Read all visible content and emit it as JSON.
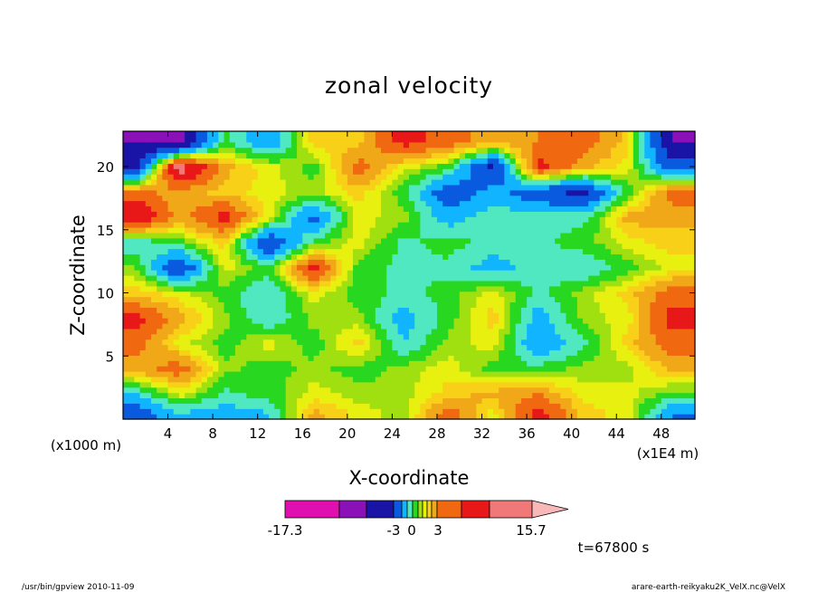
{
  "chart_data": {
    "type": "heatmap",
    "title": "zonal velocity",
    "xlabel": "X-coordinate",
    "ylabel": "Z-coordinate",
    "x_unit_label": "(x1E4 m)",
    "y_unit_label": "(x1000 m)",
    "xlim": [
      0,
      51
    ],
    "ylim": [
      0,
      22.8
    ],
    "x_ticks": [
      4,
      8,
      12,
      16,
      20,
      24,
      28,
      32,
      36,
      40,
      44,
      48
    ],
    "y_ticks": [
      5,
      10,
      15,
      20
    ],
    "time_label": "t=67800 s",
    "colorbar": {
      "tick_labels": [
        "-17.3",
        "-3",
        "0",
        "3",
        "15.7"
      ],
      "tick_values": [
        -17.3,
        -3,
        0,
        3,
        15.7
      ],
      "colors": [
        "#e010b0",
        "#8a10b8",
        "#1a14a6",
        "#0a5ae0",
        "#10b4ff",
        "#50e8c0",
        "#28d820",
        "#a0e010",
        "#e8f010",
        "#f8d018",
        "#f0a818",
        "#f06810",
        "#e81818",
        "#f07878",
        "#f8b8b8"
      ]
    },
    "field": {
      "rows_z": [
        22,
        20,
        18,
        16,
        14,
        12,
        10,
        8,
        6,
        4,
        2,
        0.5
      ],
      "cols_x": [
        1,
        5,
        9,
        13,
        17,
        21,
        25,
        29,
        33,
        37,
        41,
        45,
        49
      ],
      "values": [
        [
          -10,
          -12,
          0,
          -4,
          3,
          3,
          8,
          6,
          4,
          5,
          6,
          3,
          -10
        ],
        [
          -9,
          12,
          4,
          2,
          0,
          6,
          2,
          0,
          -8,
          8,
          4,
          2,
          -6
        ],
        [
          6,
          4,
          3,
          2,
          1,
          3,
          0,
          -6,
          -3,
          -6,
          -8,
          0,
          6
        ],
        [
          10,
          4,
          8,
          2,
          -5,
          2,
          1,
          -3,
          -1,
          -1,
          -1,
          4,
          4
        ],
        [
          -2,
          0,
          3,
          -7,
          0,
          2,
          -1,
          0,
          -1,
          -1,
          0,
          2,
          3
        ],
        [
          1,
          -7,
          2,
          0,
          8,
          0,
          -1,
          -1,
          -3,
          -1,
          -2,
          0,
          2
        ],
        [
          3,
          2,
          0,
          -2,
          2,
          0,
          -1,
          0,
          2,
          -1,
          1,
          3,
          6
        ],
        [
          8,
          4,
          1,
          -2,
          1,
          1,
          -3,
          0,
          3,
          -3,
          1,
          2,
          8
        ],
        [
          6,
          2,
          0,
          2,
          0,
          3,
          -2,
          1,
          2,
          -4,
          -1,
          3,
          6
        ],
        [
          4,
          6,
          1,
          0,
          1,
          0,
          1,
          2,
          0,
          0,
          1,
          1,
          4
        ],
        [
          -2,
          2,
          -1,
          0,
          2,
          1,
          1,
          3,
          4,
          5,
          2,
          2,
          0
        ],
        [
          -6,
          -2,
          -3,
          -2,
          4,
          2,
          1,
          6,
          2,
          8,
          3,
          2,
          -4
        ]
      ]
    }
  },
  "footer": {
    "left_text": "/usr/bin/gpview  2010-11-09",
    "right_text": "arare-earth-reikyaku2K_VelX.nc@VelX"
  }
}
